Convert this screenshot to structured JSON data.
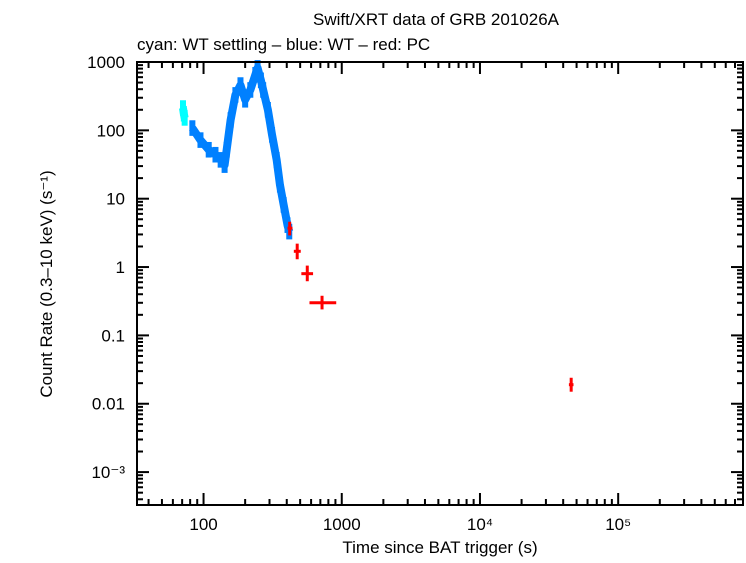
{
  "chart_data": {
    "type": "scatter",
    "title": "Swift/XRT data of GRB 201026A",
    "subtitle": "cyan: WT settling – blue: WT – red: PC",
    "xlabel": "Time since BAT trigger (s)",
    "ylabel": "Count Rate (0.3–10 keV) (s⁻¹)",
    "xscale": "log",
    "yscale": "log",
    "xlim": [
      33,
      800000
    ],
    "ylim": [
      0.00033,
      1000
    ],
    "x_ticks": [
      "100",
      "1000",
      "10⁴",
      "10⁵"
    ],
    "y_ticks": [
      "1000",
      "100",
      "10",
      "1",
      "0.1",
      "0.01",
      "10⁻³"
    ],
    "grid": false,
    "series": [
      {
        "name": "WT settling",
        "color": "#00ffff",
        "x": [
          71,
          72,
          73
        ],
        "y": [
          212,
          175,
          152
        ]
      },
      {
        "name": "WT",
        "color": "#0080ff",
        "x": [
          83,
          95,
          109,
          122,
          133,
          142,
          147,
          157,
          170,
          185,
          200,
          218,
          237,
          246,
          260,
          270,
          292,
          313,
          338,
          357,
          380,
          405,
          417
        ],
        "y": [
          108,
          72,
          52,
          44,
          37,
          31,
          52,
          142,
          330,
          460,
          280,
          390,
          650,
          820,
          540,
          390,
          200,
          86,
          37,
          16,
          8.1,
          4.1,
          3.3
        ]
      },
      {
        "name": "PC",
        "color": "#ff0000",
        "points": [
          {
            "x": 420,
            "xlo": 405,
            "xhi": 440,
            "y": 3.7,
            "ylo": 2.9,
            "yhi": 4.6
          },
          {
            "x": 476,
            "xlo": 450,
            "xhi": 505,
            "y": 1.7,
            "ylo": 1.3,
            "yhi": 2.2
          },
          {
            "x": 563,
            "xlo": 510,
            "xhi": 620,
            "y": 0.8,
            "ylo": 0.62,
            "yhi": 1.05
          },
          {
            "x": 720,
            "xlo": 584,
            "xhi": 912,
            "y": 0.3,
            "ylo": 0.24,
            "yhi": 0.38
          },
          {
            "x": 45700,
            "xlo": 44000,
            "xhi": 47500,
            "y": 0.019,
            "ylo": 0.015,
            "yhi": 0.024
          }
        ]
      }
    ]
  }
}
